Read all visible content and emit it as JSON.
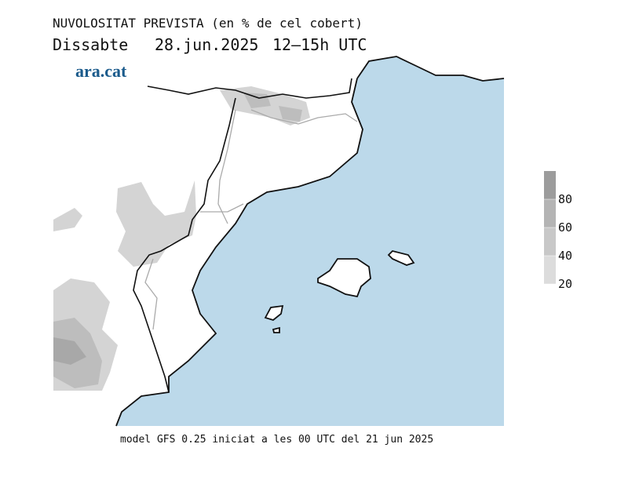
{
  "header": {
    "title": "NUVOLOSITAT PREVISTA (en % de cel cobert)",
    "day": "Dissabte",
    "date": "28.jun.2025",
    "time": "12–15h UTC"
  },
  "logo": "ara.cat",
  "legend": {
    "range": [
      20,
      100
    ],
    "ticks": [
      20,
      40,
      60,
      80
    ],
    "colors": [
      "#dcdcdc",
      "#c8c8c8",
      "#b4b4b4",
      "#9c9c9c"
    ]
  },
  "footer": "model GFS 0.25 iniciat a les 00 UTC del 21 jun 2025"
}
